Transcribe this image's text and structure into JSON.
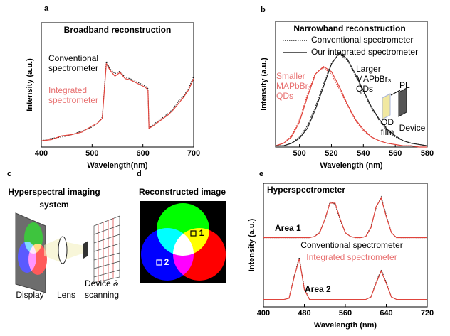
{
  "chart_data": [
    {
      "type": "line",
      "label": "a",
      "title": "Broadband reconstruction",
      "xlabel": "Wavelength(nm)",
      "ylabel": "Intensity (a.u.)",
      "x": [
        400,
        420,
        440,
        460,
        480,
        500,
        510,
        520,
        528,
        535,
        545,
        555,
        565,
        575,
        585,
        595,
        605,
        610,
        612,
        620,
        630,
        640,
        650,
        660,
        670,
        680,
        690,
        700
      ],
      "xlim": [
        400,
        700
      ],
      "xticks": [
        400,
        500,
        600,
        700
      ],
      "ylim": [
        0,
        1
      ],
      "series": [
        {
          "color": "#222222",
          "dash": "dotted",
          "values": [
            0.05,
            0.07,
            0.08,
            0.1,
            0.13,
            0.16,
            0.19,
            0.24,
            0.69,
            0.63,
            0.59,
            0.61,
            0.56,
            0.55,
            0.53,
            0.51,
            0.49,
            0.47,
            0.15,
            0.18,
            0.21,
            0.24,
            0.27,
            0.31,
            0.37,
            0.41,
            0.47,
            0.57
          ]
        },
        {
          "color": "#e0443c",
          "dash": "solid",
          "values": [
            0.05,
            0.06,
            0.09,
            0.1,
            0.12,
            0.17,
            0.19,
            0.23,
            0.67,
            0.62,
            0.57,
            0.6,
            0.55,
            0.54,
            0.52,
            0.5,
            0.48,
            0.46,
            0.15,
            0.17,
            0.2,
            0.23,
            0.26,
            0.3,
            0.35,
            0.4,
            0.46,
            0.55
          ]
        }
      ],
      "annotations": [
        {
          "lines": [
            "Conventional",
            "spectrometer"
          ],
          "color": "#000000"
        },
        {
          "lines": [
            "Integrated",
            "spectrometer"
          ],
          "color": "#e87070"
        }
      ]
    },
    {
      "type": "line",
      "label": "b",
      "title": "Narrowband reconstruction",
      "xlabel": "Wavelength (nm)",
      "ylabel": "Intensity (a.u.)",
      "x": [
        485,
        490,
        495,
        500,
        505,
        510,
        515,
        520,
        525,
        530,
        535,
        540,
        545,
        550,
        555,
        560,
        565,
        570,
        575,
        580
      ],
      "xlim": [
        485,
        580
      ],
      "xticks": [
        500,
        520,
        540,
        560,
        580
      ],
      "ylim": [
        0,
        1
      ],
      "legend": [
        {
          "label": "Conventional spectrometer",
          "dash": "dotted"
        },
        {
          "label": "Our integrated spectrometer",
          "dash": "solid"
        }
      ],
      "series": [
        {
          "color": "#e0443c",
          "dash": "solid",
          "values": [
            0.01,
            0.03,
            0.08,
            0.2,
            0.4,
            0.58,
            0.64,
            0.6,
            0.48,
            0.34,
            0.22,
            0.14,
            0.08,
            0.05,
            0.03,
            0.02,
            0.01,
            0.01,
            0,
            0
          ]
        },
        {
          "color": "#e0443c",
          "dash": "dotted",
          "values": [
            0.01,
            0.03,
            0.09,
            0.22,
            0.42,
            0.59,
            0.63,
            0.58,
            0.46,
            0.33,
            0.21,
            0.13,
            0.08,
            0.05,
            0.03,
            0.02,
            0.01,
            0.01,
            0,
            0
          ]
        },
        {
          "color": "#222222",
          "dash": "solid",
          "values": [
            0.01,
            0.01,
            0.03,
            0.07,
            0.15,
            0.3,
            0.48,
            0.66,
            0.75,
            0.7,
            0.58,
            0.45,
            0.32,
            0.22,
            0.14,
            0.09,
            0.05,
            0.03,
            0.02,
            0.01
          ]
        },
        {
          "color": "#222222",
          "dash": "dotted",
          "values": [
            0.01,
            0.01,
            0.03,
            0.08,
            0.17,
            0.32,
            0.5,
            0.67,
            0.74,
            0.69,
            0.57,
            0.44,
            0.31,
            0.21,
            0.13,
            0.08,
            0.05,
            0.03,
            0.02,
            0.01
          ]
        }
      ],
      "annotations": [
        {
          "lines": [
            "Smaller",
            "MAPbBr₃",
            "QDs"
          ],
          "color": "#e87070"
        },
        {
          "lines": [
            "Larger",
            "MAPbBr₃",
            "QDs"
          ],
          "color": "#000000"
        },
        {
          "lines": [
            "PL"
          ],
          "color": "#000000"
        },
        {
          "lines": [
            "QD",
            "film"
          ],
          "color": "#000000"
        },
        {
          "lines": [
            "Device"
          ],
          "color": "#000000"
        }
      ]
    },
    {
      "type": "line",
      "label": "e",
      "title": "Hyperspectrometer",
      "xlabel": "Wavelength (nm)",
      "ylabel": "Intensity (a.u.)",
      "x": [
        400,
        410,
        420,
        430,
        440,
        450,
        460,
        470,
        480,
        490,
        500,
        510,
        520,
        530,
        540,
        550,
        560,
        570,
        580,
        590,
        600,
        610,
        620,
        630,
        640,
        650,
        660,
        670,
        680,
        690,
        700,
        710,
        720
      ],
      "xlim": [
        400,
        720
      ],
      "xticks": [
        400,
        480,
        560,
        640,
        720
      ],
      "ylim": [
        0,
        1
      ],
      "series": [
        {
          "color": "#222222",
          "dash": "dotted",
          "values": [
            0.56,
            0.56,
            0.56,
            0.56,
            0.56,
            0.56,
            0.56,
            0.56,
            0.56,
            0.56,
            0.57,
            0.61,
            0.7,
            0.85,
            0.83,
            0.7,
            0.6,
            0.57,
            0.56,
            0.56,
            0.57,
            0.65,
            0.8,
            0.89,
            0.74,
            0.6,
            0.56,
            0.56,
            0.56,
            0.56,
            0.56,
            0.56,
            0.56
          ]
        },
        {
          "color": "#e0443c",
          "dash": "solid",
          "values": [
            0.56,
            0.56,
            0.56,
            0.56,
            0.56,
            0.56,
            0.56,
            0.56,
            0.56,
            0.56,
            0.57,
            0.6,
            0.71,
            0.84,
            0.84,
            0.71,
            0.6,
            0.57,
            0.56,
            0.56,
            0.57,
            0.64,
            0.81,
            0.88,
            0.73,
            0.6,
            0.56,
            0.56,
            0.56,
            0.56,
            0.56,
            0.56,
            0.56
          ]
        },
        {
          "color": "#222222",
          "dash": "dotted",
          "values": [
            0.06,
            0.06,
            0.06,
            0.06,
            0.06,
            0.07,
            0.25,
            0.4,
            0.15,
            0.06,
            0.06,
            0.06,
            0.06,
            0.06,
            0.06,
            0.06,
            0.06,
            0.06,
            0.06,
            0.06,
            0.06,
            0.08,
            0.2,
            0.3,
            0.2,
            0.08,
            0.06,
            0.06,
            0.06,
            0.06,
            0.06,
            0.06,
            0.06
          ]
        },
        {
          "color": "#e0443c",
          "dash": "solid",
          "values": [
            0.06,
            0.06,
            0.06,
            0.06,
            0.06,
            0.07,
            0.24,
            0.39,
            0.14,
            0.06,
            0.06,
            0.06,
            0.06,
            0.06,
            0.06,
            0.06,
            0.06,
            0.06,
            0.06,
            0.06,
            0.06,
            0.08,
            0.19,
            0.29,
            0.19,
            0.08,
            0.06,
            0.06,
            0.06,
            0.06,
            0.06,
            0.06,
            0.06
          ]
        }
      ],
      "annotations": [
        {
          "lines": [
            "Area 1"
          ],
          "color": "#000000"
        },
        {
          "lines": [
            "Area 2"
          ],
          "color": "#000000"
        },
        {
          "lines": [
            "Conventional spectrometer"
          ],
          "color": "#000000"
        },
        {
          "lines": [
            "Integrated spectrometer"
          ],
          "color": "#e87070"
        }
      ]
    }
  ],
  "diagrams": {
    "c": {
      "label": "c",
      "title_lines": [
        "Hyperspectral imaging",
        "system"
      ],
      "labels": [
        "Display",
        "Lens",
        "Device &",
        "scanning"
      ]
    },
    "d": {
      "label": "d",
      "title": "Reconstructed image",
      "markers": [
        "1",
        "2"
      ]
    }
  }
}
